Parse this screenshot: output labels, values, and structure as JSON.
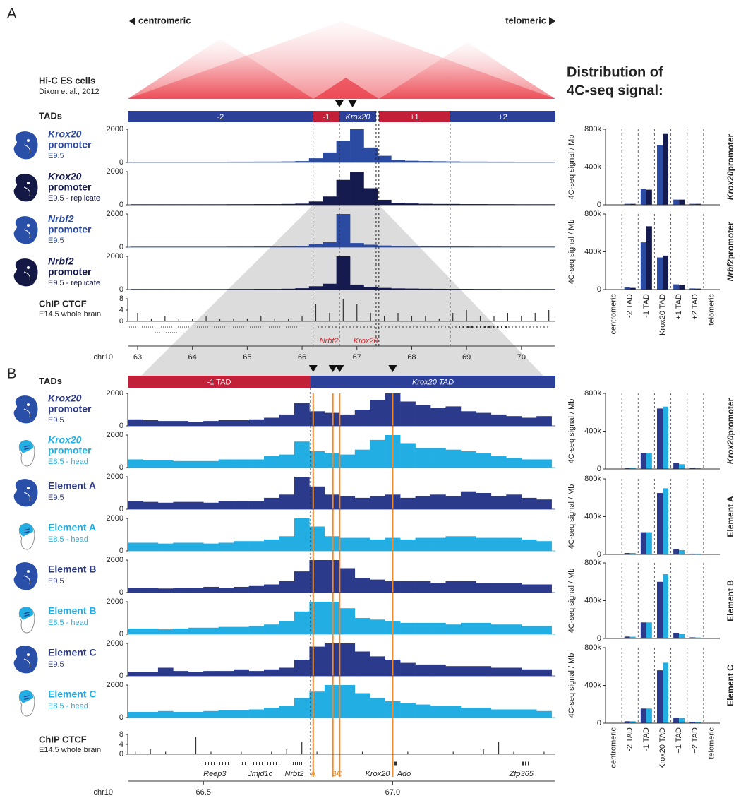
{
  "title_lines": [
    "Distribution of",
    "4C-seq signal:"
  ],
  "panel_a": {
    "letter": "A",
    "centromeric": "centromeric",
    "telomeric": "telomeric",
    "hic_title": "Hi-C ES cells",
    "hic_source": "Dixon et al., 2012",
    "tads_label": "TADs",
    "tads": [
      {
        "label": "-2",
        "start": 62.82,
        "end": 66.2,
        "color": "#2c3f99"
      },
      {
        "label": "-1",
        "start": 66.2,
        "end": 66.68,
        "color": "#c21f39"
      },
      {
        "label": "Krox20",
        "start": 66.68,
        "end": 67.35,
        "color": "#2c3f99",
        "italic": true
      },
      {
        "label": "+1",
        "start": 67.4,
        "end": 68.7,
        "color": "#c21f39"
      },
      {
        "label": "+2",
        "start": 68.7,
        "end": 70.62,
        "color": "#2c3f99"
      }
    ],
    "markers": [
      66.68,
      66.92
    ],
    "xlim": [
      62.82,
      70.62
    ],
    "xticks": [
      63,
      64,
      65,
      66,
      67,
      68,
      69,
      70
    ],
    "chrom": "chr10",
    "ylim": [
      0,
      2000
    ],
    "yticks": [
      0,
      2000
    ],
    "x": [
      63.0,
      63.25,
      63.5,
      63.75,
      64.0,
      64.25,
      64.5,
      64.75,
      65.0,
      65.25,
      65.5,
      65.75,
      66.0,
      66.25,
      66.5,
      66.75,
      67.0,
      67.25,
      67.5,
      67.75,
      68.0,
      68.25,
      68.5,
      68.75,
      69.0,
      69.25,
      69.5,
      69.75,
      70.0,
      70.25,
      70.5
    ],
    "tracks": [
      {
        "label_italic": "Krox20",
        "label": "promoter",
        "sub": "E9.5",
        "color": "#2b4ba3",
        "embryo": "blue",
        "values": [
          40,
          40,
          40,
          40,
          40,
          40,
          40,
          45,
          45,
          50,
          50,
          60,
          80,
          250,
          600,
          1300,
          2000,
          900,
          400,
          150,
          100,
          80,
          70,
          60,
          50,
          50,
          45,
          45,
          40,
          40,
          40
        ]
      },
      {
        "label_italic": "Krox20",
        "label": "promoter",
        "sub": "E9.5 - replicate",
        "color": "#151a4f",
        "embryo": "navy",
        "values": [
          30,
          30,
          30,
          30,
          30,
          30,
          30,
          35,
          35,
          40,
          40,
          50,
          70,
          200,
          500,
          1500,
          2000,
          1000,
          300,
          120,
          80,
          60,
          50,
          50,
          40,
          40,
          35,
          35,
          30,
          30,
          30
        ]
      },
      {
        "label_italic": "Nrbf2",
        "label": "promoter",
        "sub": "E9.5",
        "color": "#2b4ba3",
        "embryo": "blue",
        "values": [
          30,
          30,
          30,
          30,
          30,
          30,
          30,
          35,
          35,
          40,
          40,
          50,
          70,
          180,
          300,
          2000,
          250,
          150,
          100,
          70,
          60,
          50,
          45,
          40,
          40,
          35,
          35,
          30,
          30,
          30,
          30
        ]
      },
      {
        "label_italic": "Nrbf2",
        "label": "promoter",
        "sub": "E9.5 - replicate",
        "color": "#151a4f",
        "embryo": "navy",
        "values": [
          30,
          30,
          30,
          30,
          30,
          30,
          30,
          35,
          35,
          40,
          40,
          50,
          80,
          200,
          350,
          2000,
          300,
          160,
          100,
          70,
          60,
          50,
          45,
          40,
          40,
          35,
          35,
          30,
          30,
          30,
          30
        ]
      }
    ],
    "ctcf": {
      "title": "ChIP CTCF",
      "sub": "E14.5 whole brain",
      "ylim": [
        0,
        8
      ],
      "yticks": [
        0,
        4,
        8
      ],
      "values": [
        3,
        1,
        2,
        1,
        1,
        2,
        1,
        1,
        1,
        2,
        1,
        1,
        2,
        6,
        3,
        8,
        6,
        3,
        2,
        3,
        2,
        2,
        1,
        3,
        4,
        2,
        2,
        3,
        2,
        3,
        4
      ]
    },
    "genes": [
      {
        "name": "Nrbf2",
        "pos": 66.49,
        "color": "#d9272e"
      },
      {
        "name": "Krox20",
        "pos": 67.16,
        "color": "#d9272e"
      }
    ]
  },
  "panel_b": {
    "letter": "B",
    "tads_label": "TADs",
    "tads": [
      {
        "label": "-1 TAD",
        "start": 66.3,
        "end": 66.783,
        "color": "#c21f39"
      },
      {
        "label": "Krox20 TAD",
        "start": 66.783,
        "end": 67.43,
        "color": "#2c3f99",
        "italic": true
      }
    ],
    "markers": [
      66.79,
      66.842,
      66.86,
      67.0
    ],
    "marker_color": "#f08a2c",
    "xlim": [
      66.3,
      67.43
    ],
    "xticks": [
      66.5,
      {
        "value": 67.0,
        "label": "67.0"
      }
    ],
    "chrom": "chr10",
    "ylim": [
      0,
      2000
    ],
    "yticks": [
      0,
      2000
    ],
    "x": [
      66.32,
      66.36,
      66.4,
      66.44,
      66.48,
      66.52,
      66.56,
      66.6,
      66.64,
      66.68,
      66.72,
      66.76,
      66.8,
      66.84,
      66.88,
      66.92,
      66.96,
      67.0,
      67.04,
      67.08,
      67.12,
      67.16,
      67.2,
      67.24,
      67.28,
      67.32,
      67.36,
      67.4
    ],
    "tracks": [
      {
        "label_italic": "Krox20",
        "label": "promoter",
        "sub": "E9.5",
        "color": "#2c3a8c",
        "embryo": "blue",
        "values": [
          400,
          350,
          300,
          300,
          250,
          300,
          350,
          350,
          400,
          500,
          700,
          1400,
          900,
          800,
          700,
          1000,
          1600,
          2000,
          1500,
          1300,
          1100,
          1200,
          900,
          800,
          700,
          600,
          500,
          600
        ]
      },
      {
        "label_italic": "Krox20",
        "label": "promoter",
        "sub": "E8.5 - head",
        "color": "#22aee3",
        "embryo": "light",
        "values": [
          500,
          450,
          450,
          400,
          400,
          400,
          500,
          500,
          500,
          700,
          800,
          1600,
          1000,
          900,
          800,
          1100,
          1700,
          2000,
          1500,
          1200,
          1200,
          1100,
          1000,
          900,
          700,
          600,
          500,
          500
        ]
      },
      {
        "label": "Element A",
        "sub": "E9.5",
        "color": "#2c3a8c",
        "embryo": "blue",
        "values": [
          500,
          450,
          400,
          450,
          450,
          400,
          500,
          500,
          500,
          700,
          900,
          2000,
          1400,
          900,
          800,
          700,
          800,
          900,
          700,
          800,
          900,
          800,
          1100,
          1000,
          800,
          900,
          700,
          600
        ]
      },
      {
        "label": "Element A",
        "sub": "E8.5 - head",
        "color": "#22aee3",
        "embryo": "light",
        "values": [
          500,
          500,
          450,
          500,
          500,
          450,
          500,
          600,
          600,
          700,
          900,
          2000,
          1500,
          900,
          800,
          800,
          700,
          800,
          700,
          800,
          800,
          900,
          900,
          800,
          800,
          800,
          700,
          600
        ]
      },
      {
        "label": "Element B",
        "sub": "E9.5",
        "color": "#2c3a8c",
        "embryo": "blue",
        "values": [
          300,
          300,
          250,
          300,
          300,
          350,
          300,
          350,
          400,
          500,
          700,
          1300,
          2000,
          2000,
          1500,
          900,
          800,
          700,
          700,
          700,
          600,
          700,
          700,
          600,
          600,
          600,
          500,
          500
        ]
      },
      {
        "label": "Element B",
        "sub": "E8.5 - head",
        "color": "#22aee3",
        "embryo": "light",
        "values": [
          350,
          350,
          300,
          350,
          400,
          400,
          450,
          450,
          500,
          600,
          800,
          1400,
          2000,
          2000,
          1600,
          1000,
          900,
          800,
          700,
          700,
          700,
          600,
          700,
          700,
          600,
          600,
          500,
          500
        ]
      },
      {
        "label": "Element C",
        "sub": "E9.5",
        "color": "#2c3a8c",
        "embryo": "blue",
        "values": [
          250,
          250,
          500,
          300,
          250,
          300,
          300,
          400,
          300,
          400,
          500,
          1000,
          1800,
          2000,
          2000,
          1500,
          1200,
          1000,
          800,
          700,
          700,
          600,
          600,
          600,
          500,
          500,
          400,
          400
        ]
      },
      {
        "label": "Element C",
        "sub": "E8.5 - head",
        "color": "#22aee3",
        "embryo": "light",
        "values": [
          350,
          350,
          400,
          350,
          350,
          400,
          450,
          450,
          500,
          600,
          700,
          1200,
          1600,
          2000,
          2000,
          1500,
          1200,
          1000,
          900,
          800,
          700,
          700,
          600,
          600,
          500,
          500,
          500,
          400
        ]
      }
    ],
    "ctcf": {
      "title": "ChIP CTCF",
      "sub": "E14.5 whole brain",
      "ylim": [
        0,
        8
      ],
      "yticks": [
        0,
        4,
        8
      ],
      "values": [
        1,
        2,
        1,
        0,
        7,
        1,
        0,
        1,
        0,
        1,
        2,
        5,
        1,
        0,
        0,
        1,
        0,
        3,
        1,
        0,
        0,
        1,
        0,
        2,
        5,
        1,
        0,
        1
      ]
    },
    "genes": [
      {
        "name": "Reep3",
        "pos": 66.53,
        "color": "#222222"
      },
      {
        "name": "Jmjd1c",
        "pos": 66.65,
        "color": "#222222"
      },
      {
        "name": "Nrbf2",
        "pos": 66.74,
        "color": "#222222"
      },
      {
        "name": "Krox20",
        "pos": 66.96,
        "color": "#222222"
      },
      {
        "name": "Ado",
        "pos": 67.03,
        "color": "#222222"
      },
      {
        "name": "Zfp365",
        "pos": 67.34,
        "color": "#222222"
      }
    ],
    "elements": [
      {
        "label": "A",
        "pos": 66.79
      },
      {
        "label": "BC",
        "pos": 66.853
      }
    ]
  },
  "chart_data": [
    {
      "type": "bar",
      "ylabel": "4C-seq signal / Mb",
      "categories": [
        "centromeric",
        "-2 TAD",
        "-1 TAD",
        "Krox20 TAD",
        "+1 TAD",
        "+2 TAD",
        "telomeric"
      ],
      "ylim": [
        0,
        800000
      ],
      "yticks": [
        0,
        {
          "value": 400000,
          "label": "400k"
        },
        {
          "value": 800000,
          "label": "800k"
        }
      ],
      "panels": [
        {
          "title_italic": "Krox20",
          "title": "promoter",
          "series": [
            {
              "color": "#2b4ba3",
              "values": [
                0,
                10000,
                170000,
                630000,
                55000,
                10000,
                2000
              ]
            },
            {
              "color": "#151a4f",
              "values": [
                0,
                10000,
                160000,
                750000,
                55000,
                10000,
                2000
              ]
            }
          ]
        },
        {
          "title_italic": "Nrbf2",
          "title": "promoter",
          "series": [
            {
              "color": "#2b4ba3",
              "values": [
                0,
                25000,
                500000,
                340000,
                55000,
                12000,
                2000
              ]
            },
            {
              "color": "#151a4f",
              "values": [
                0,
                18000,
                670000,
                360000,
                45000,
                10000,
                2000
              ]
            }
          ]
        }
      ]
    },
    {
      "type": "bar",
      "ylabel": "4C-seq signal / Mb",
      "categories": [
        "centromeric",
        "-2 TAD",
        "-1 TAD",
        "Krox20 TAD",
        "+1 TAD",
        "+2 TAD",
        "telomeric"
      ],
      "ylim": [
        0,
        800000
      ],
      "yticks": [
        0,
        {
          "value": 400000,
          "label": "400k"
        },
        {
          "value": 800000,
          "label": "800k"
        }
      ],
      "panels": [
        {
          "title_italic": "Krox20",
          "title": "promoter",
          "series": [
            {
              "color": "#2c3a8c",
              "values": [
                0,
                10000,
                165000,
                640000,
                60000,
                10000,
                2000
              ]
            },
            {
              "color": "#22aee3",
              "values": [
                0,
                12000,
                170000,
                660000,
                50000,
                8000,
                2000
              ]
            }
          ]
        },
        {
          "title": "Element A",
          "series": [
            {
              "color": "#2c3a8c",
              "values": [
                0,
                15000,
                235000,
                650000,
                55000,
                8000,
                2000
              ]
            },
            {
              "color": "#22aee3",
              "values": [
                0,
                15000,
                235000,
                700000,
                45000,
                8000,
                2000
              ]
            }
          ]
        },
        {
          "title": "Element B",
          "series": [
            {
              "color": "#2c3a8c",
              "values": [
                0,
                20000,
                170000,
                600000,
                60000,
                12000,
                2000
              ]
            },
            {
              "color": "#22aee3",
              "values": [
                0,
                18000,
                170000,
                680000,
                50000,
                10000,
                2000
              ]
            }
          ]
        },
        {
          "title": "Element C",
          "series": [
            {
              "color": "#2c3a8c",
              "values": [
                0,
                20000,
                155000,
                560000,
                60000,
                15000,
                2000
              ]
            },
            {
              "color": "#22aee3",
              "values": [
                0,
                20000,
                155000,
                640000,
                55000,
                12000,
                2000
              ]
            }
          ]
        }
      ]
    }
  ]
}
